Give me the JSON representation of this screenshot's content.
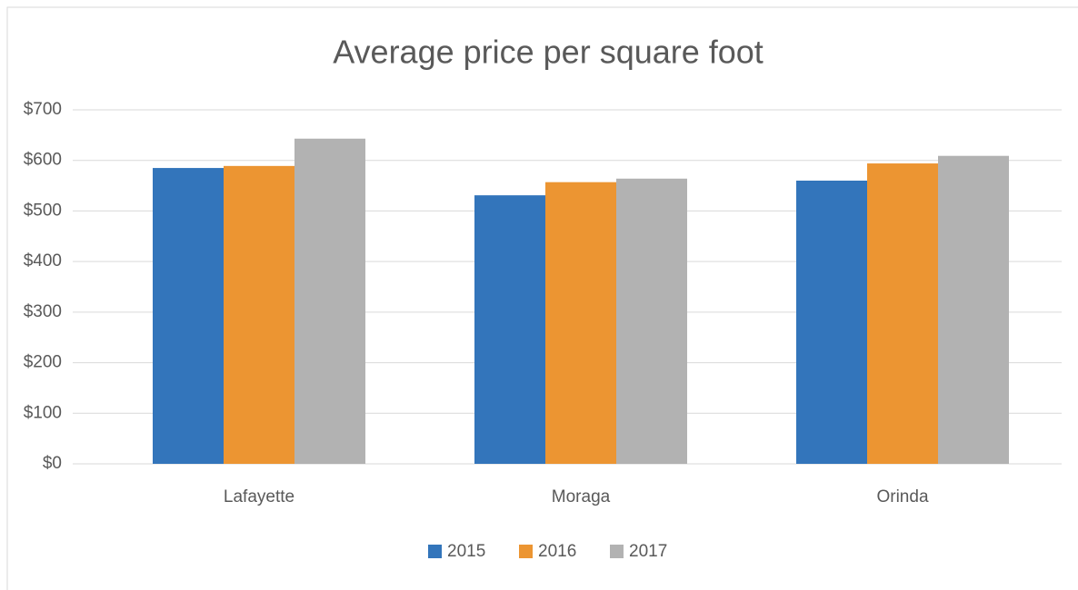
{
  "chart_data": {
    "type": "bar",
    "title": "Average price per square foot",
    "categories": [
      "Lafayette",
      "Moraga",
      "Orinda"
    ],
    "series": [
      {
        "name": "2015",
        "color": "#3375bb",
        "values": [
          585,
          531,
          560
        ]
      },
      {
        "name": "2016",
        "color": "#ec9532",
        "values": [
          589,
          557,
          594
        ]
      },
      {
        "name": "2017",
        "color": "#b2b2b2",
        "values": [
          643,
          564,
          609
        ]
      }
    ],
    "ylim": [
      0,
      700
    ],
    "yticks": [
      {
        "value": 0,
        "label": "$0"
      },
      {
        "value": 100,
        "label": "$100"
      },
      {
        "value": 200,
        "label": "$200"
      },
      {
        "value": 300,
        "label": "$300"
      },
      {
        "value": 400,
        "label": "$400"
      },
      {
        "value": 500,
        "label": "$500"
      },
      {
        "value": 600,
        "label": "$600"
      },
      {
        "value": 700,
        "label": "$700"
      }
    ],
    "grid": true,
    "legend": "bottom"
  }
}
